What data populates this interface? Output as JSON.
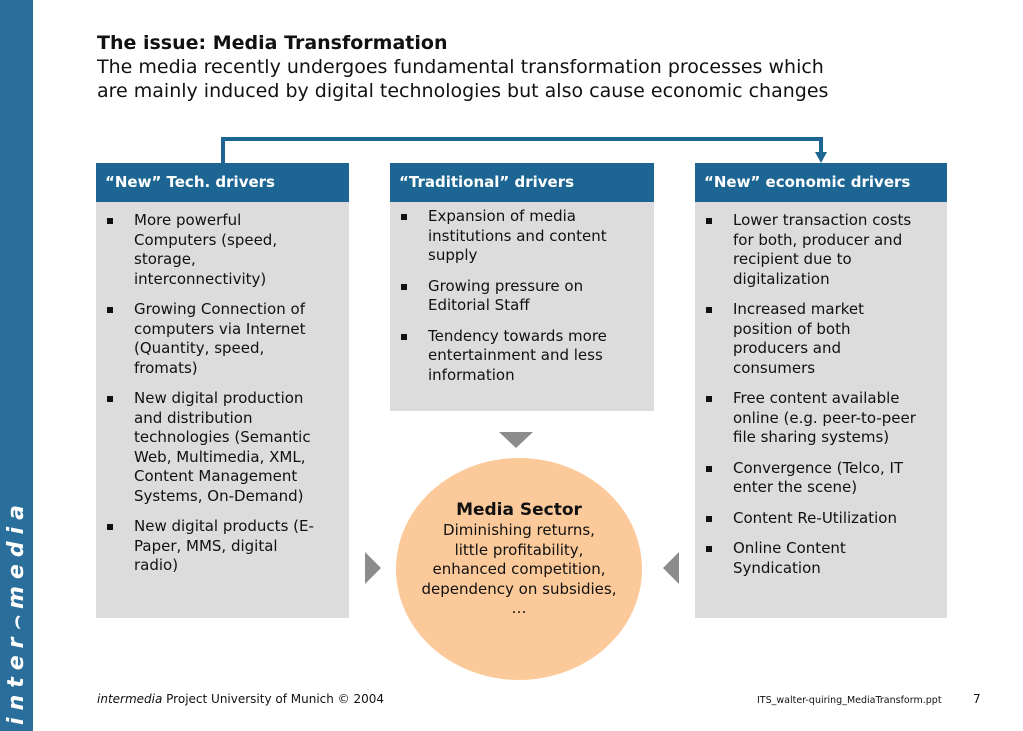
{
  "brand": {
    "logo_text": "inter⌢media"
  },
  "slide": {
    "title": "The issue: Media Transformation",
    "subtitle_line1": "The media recently undergoes fundamental transformation processes which",
    "subtitle_line2": "are mainly induced by digital technologies but also cause economic changes"
  },
  "colors": {
    "header_blue": "#1d6694",
    "sidebar_blue": "#2a6f9b",
    "box_gray": "#dcdcdc",
    "circle_orange": "#fcca9a",
    "arrow_gray": "#8c8c8c"
  },
  "boxes": [
    {
      "header": "“New” Tech. drivers",
      "items": [
        [
          "More powerful",
          "Computers (speed,",
          "storage,",
          "interconnectivity)"
        ],
        [
          "Growing Connection of",
          "computers via Internet",
          "(Quantity, speed,",
          "fromats)"
        ],
        [
          "New digital production",
          "and distribution",
          "technologies (Semantic",
          "Web, Multimedia, XML,",
          "Content Management",
          "Systems, On-Demand)"
        ],
        [
          "New digital products (E-",
          "Paper, MMS, digital",
          "radio)"
        ]
      ]
    },
    {
      "header": "“Traditional” drivers",
      "items": [
        [
          "Expansion of media",
          "institutions and content",
          "supply"
        ],
        [
          "Growing pressure on",
          "Editorial Staff"
        ],
        [
          "Tendency towards more",
          "entertainment and less",
          "information"
        ]
      ]
    },
    {
      "header": "“New” economic drivers",
      "items": [
        [
          "Lower transaction costs",
          "for both, producer and",
          "recipient due to",
          "digitalization"
        ],
        [
          "Increased market",
          "position of both",
          "producers and",
          "consumers"
        ],
        [
          "Free content available",
          "online (e.g. peer-to-peer",
          "file sharing systems)"
        ],
        [
          "Convergence (Telco, IT",
          "enter the scene)"
        ],
        [
          "Content Re-Utilization"
        ],
        [
          "Online Content",
          "Syndication"
        ]
      ]
    }
  ],
  "media_sector": {
    "title": "Media Sector",
    "lines": [
      "Diminishing returns,",
      "little profitability,",
      "enhanced competition,",
      "dependency on subsidies,",
      "…"
    ]
  },
  "footer": {
    "org_italic": "intermedia",
    "org_rest": " Project University of Munich © 2004",
    "filename": "ITS_walter-quiring_MediaTransform.ppt",
    "page_number": "7"
  }
}
